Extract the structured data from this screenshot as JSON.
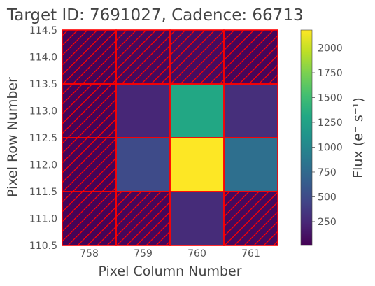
{
  "chart_data": {
    "type": "heatmap",
    "title": "Target ID: 7691027, Cadence: 66713",
    "xlabel": "Pixel Column Number",
    "ylabel": "Pixel Row Number",
    "colorbar_label": "Flux (e⁻ s⁻¹)",
    "columns": [
      758,
      759,
      760,
      761
    ],
    "rows": [
      114,
      113,
      112,
      111
    ],
    "xlim": [
      757.5,
      761.5
    ],
    "ylim": [
      110.5,
      114.5
    ],
    "xticks": [
      "758",
      "759",
      "760",
      "761"
    ],
    "yticks": [
      "110.5",
      "111.0",
      "111.5",
      "112.0",
      "112.5",
      "113.0",
      "113.5",
      "114.0",
      "114.5"
    ],
    "colorbar_ticks": [
      "250",
      "500",
      "750",
      "1000",
      "1250",
      "1500",
      "1750",
      "2000"
    ],
    "colorbar_range": [
      10,
      2180
    ],
    "colormap": "viridis",
    "values": [
      [
        30,
        60,
        80,
        40
      ],
      [
        30,
        250,
        1300,
        300
      ],
      [
        30,
        500,
        2180,
        800
      ],
      [
        30,
        50,
        280,
        60
      ]
    ],
    "aperture_mask": [
      [
        false,
        false,
        false,
        false
      ],
      [
        false,
        true,
        true,
        true
      ],
      [
        false,
        true,
        true,
        true
      ],
      [
        false,
        false,
        true,
        false
      ]
    ],
    "mask_color": "#ff0000"
  }
}
